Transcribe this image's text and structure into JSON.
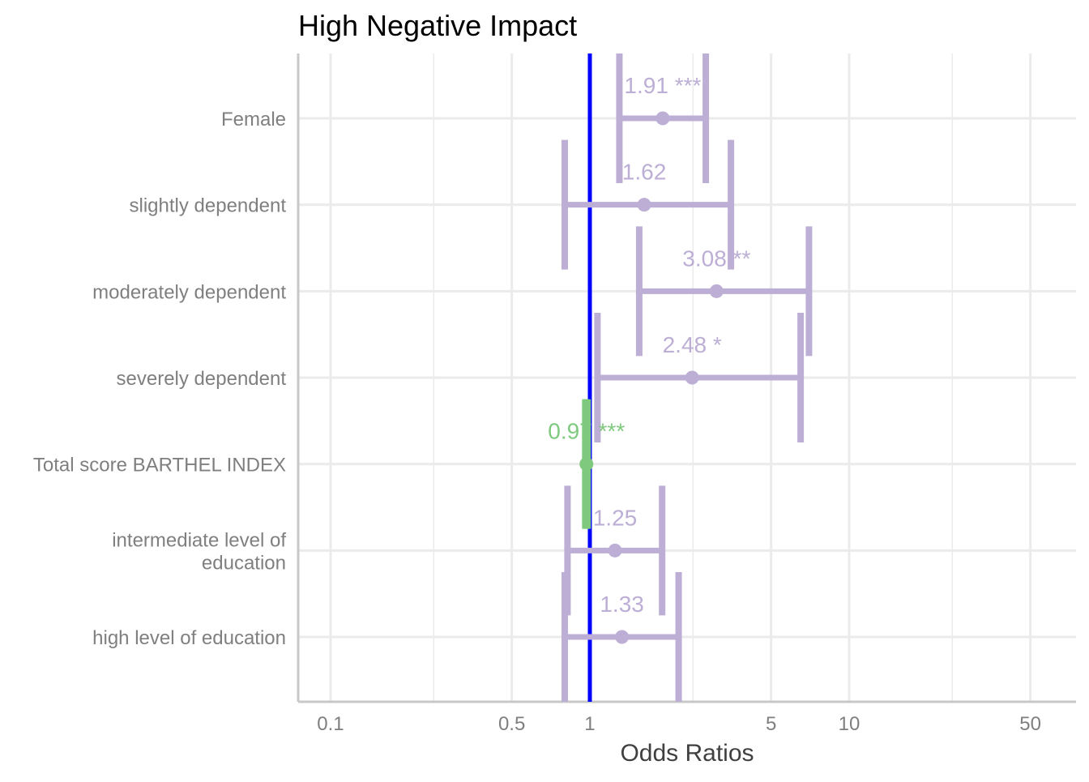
{
  "chart_data": {
    "type": "forest",
    "title": "High Negative Impact",
    "xlabel": "Odds Ratios",
    "x_scale": "log10",
    "xlim": [
      0.075,
      75
    ],
    "x_ticks": [
      0.1,
      0.5,
      1,
      5,
      10,
      50
    ],
    "x_tick_labels": [
      "0.1",
      "0.5",
      "1",
      "5",
      "10",
      "50"
    ],
    "x_minor_ticks": [
      0.25,
      2.5,
      25
    ],
    "reference_line": 1,
    "grid": true,
    "legend": "none",
    "colors": {
      "reference_line": "#0000ff",
      "increase": "#bcaed5",
      "decrease": "#7fc97f",
      "grid": "#ebebeb",
      "axis": "#c8c8c8",
      "tick_text": "#7f7f7f",
      "title_text": "#000000",
      "axis_title_text": "#404040"
    },
    "terms": [
      {
        "label": "Female",
        "estimate": 1.91,
        "ci_low": 1.3,
        "ci_high": 2.8,
        "stars": "***",
        "display": "1.91 ***",
        "direction": "increase"
      },
      {
        "label": "slightly dependent",
        "estimate": 1.62,
        "ci_low": 0.8,
        "ci_high": 3.5,
        "stars": "",
        "display": "1.62",
        "direction": "increase"
      },
      {
        "label": "moderately dependent",
        "estimate": 3.08,
        "ci_low": 1.55,
        "ci_high": 7.0,
        "stars": "**",
        "display": "3.08 **",
        "direction": "increase"
      },
      {
        "label": "severely dependent",
        "estimate": 2.48,
        "ci_low": 1.07,
        "ci_high": 6.5,
        "stars": "*",
        "display": "2.48 *",
        "direction": "increase"
      },
      {
        "label": "Total score BARTHEL INDEX",
        "estimate": 0.97,
        "ci_low": 0.96,
        "ci_high": 0.98,
        "stars": "***",
        "display": "0.97 ***",
        "direction": "decrease"
      },
      {
        "label": "intermediate level of education",
        "label_lines": [
          "intermediate level of",
          "education"
        ],
        "estimate": 1.25,
        "ci_low": 0.82,
        "ci_high": 1.9,
        "stars": "",
        "display": "1.25",
        "direction": "increase"
      },
      {
        "label": "high level of education",
        "estimate": 1.33,
        "ci_low": 0.8,
        "ci_high": 2.2,
        "stars": "",
        "display": "1.33",
        "direction": "increase"
      }
    ]
  }
}
